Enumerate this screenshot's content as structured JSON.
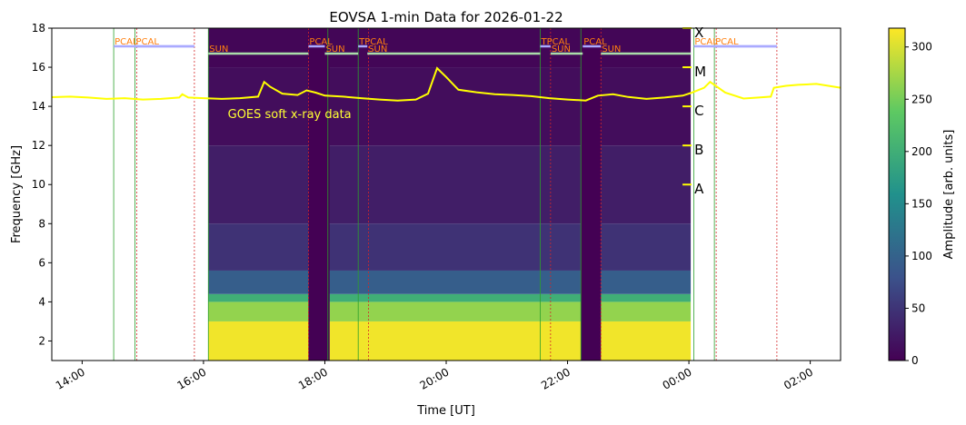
{
  "chart_data": {
    "type": "heatmap",
    "title": "EOVSA 1-min Data for 2026-01-22",
    "xlabel": "Time [UT]",
    "ylabel": "Frequency [GHz]",
    "colorbar_label": "Amplitude [arb. units]",
    "colormap": "viridis",
    "colormap_stops": [
      "#440154",
      "#3b528b",
      "#21918c",
      "#5ec962",
      "#fde725"
    ],
    "xlim_hours": [
      13.5,
      26.5
    ],
    "ylim": [
      1,
      18
    ],
    "x_ticks": [
      {
        "hour": 14,
        "label": "14:00"
      },
      {
        "hour": 16,
        "label": "16:00"
      },
      {
        "hour": 18,
        "label": "18:00"
      },
      {
        "hour": 20,
        "label": "20:00"
      },
      {
        "hour": 22,
        "label": "22:00"
      },
      {
        "hour": 24,
        "label": "00:00"
      },
      {
        "hour": 26,
        "label": "02:00"
      }
    ],
    "y_ticks": [
      2,
      4,
      6,
      8,
      10,
      12,
      14,
      16,
      18
    ],
    "color_ticks": [
      0,
      50,
      100,
      150,
      200,
      250,
      300
    ],
    "color_range": [
      0,
      318
    ],
    "data_range_hours": [
      16.08,
      24.03
    ],
    "gaps_hours": [
      [
        17.73,
        18.08
      ],
      [
        22.22,
        22.55
      ]
    ],
    "band_levels": [
      {
        "f_low": 1,
        "f_high": 3.0,
        "amp": 312
      },
      {
        "f_low": 3.0,
        "f_high": 4.0,
        "amp": 265
      },
      {
        "f_low": 4.0,
        "f_high": 4.4,
        "amp": 200
      },
      {
        "f_low": 4.4,
        "f_high": 5.6,
        "amp": 95
      },
      {
        "f_low": 5.6,
        "f_high": 8.0,
        "amp": 48
      },
      {
        "f_low": 8.0,
        "f_high": 12.0,
        "amp": 28
      },
      {
        "f_low": 12.0,
        "f_high": 16.0,
        "amp": 12
      },
      {
        "f_low": 16.0,
        "f_high": 18,
        "amp": 5
      }
    ],
    "observation_segments": [
      {
        "label": "PCAL",
        "start": 14.52,
        "end": 15.85,
        "color": "#aaaaff"
      },
      {
        "label": "PCAL",
        "start": 14.87,
        "end": 15.85,
        "color": "#aaaaff"
      },
      {
        "label": "SUN",
        "start": 16.08,
        "end": 17.73,
        "color": "#aaddaa"
      },
      {
        "label": "PCAL",
        "start": 17.73,
        "end": 18.0,
        "color": "#aaaaff"
      },
      {
        "label": "SUN",
        "start": 18.0,
        "end": 18.55,
        "color": "#aaddaa"
      },
      {
        "label": "TPCAL",
        "start": 18.55,
        "end": 18.7,
        "color": "#aaaaff"
      },
      {
        "label": "SUN",
        "start": 18.7,
        "end": 21.55,
        "color": "#aaddaa"
      },
      {
        "label": "TPCAL",
        "start": 21.55,
        "end": 21.72,
        "color": "#aaaaff"
      },
      {
        "label": "SUN",
        "start": 21.72,
        "end": 22.25,
        "color": "#aaddaa"
      },
      {
        "label": "PCAL",
        "start": 22.25,
        "end": 22.55,
        "color": "#aaaaff"
      },
      {
        "label": "SUN",
        "start": 22.55,
        "end": 24.03,
        "color": "#aaddaa"
      },
      {
        "label": "PCAL",
        "start": 24.08,
        "end": 25.45,
        "color": "#aaaaff"
      },
      {
        "label": "PCAL",
        "start": 24.42,
        "end": 25.45,
        "color": "#aaaaff"
      }
    ],
    "vertical_markers": [
      {
        "hour": 14.52,
        "color": "#2ca02c",
        "style": "solid"
      },
      {
        "hour": 14.87,
        "color": "#2ca02c",
        "style": "solid"
      },
      {
        "hour": 14.9,
        "color": "#d62728",
        "style": "dotted"
      },
      {
        "hour": 15.85,
        "color": "#d62728",
        "style": "dotted"
      },
      {
        "hour": 16.08,
        "color": "#2ca02c",
        "style": "solid"
      },
      {
        "hour": 17.73,
        "color": "#d62728",
        "style": "dotted"
      },
      {
        "hour": 18.05,
        "color": "#2ca02c",
        "style": "solid"
      },
      {
        "hour": 18.55,
        "color": "#2ca02c",
        "style": "solid"
      },
      {
        "hour": 18.72,
        "color": "#d62728",
        "style": "dotted"
      },
      {
        "hour": 21.55,
        "color": "#2ca02c",
        "style": "solid"
      },
      {
        "hour": 21.72,
        "color": "#d62728",
        "style": "dotted"
      },
      {
        "hour": 22.22,
        "color": "#2ca02c",
        "style": "solid"
      },
      {
        "hour": 22.55,
        "color": "#d62728",
        "style": "dotted"
      },
      {
        "hour": 24.08,
        "color": "#2ca02c",
        "style": "solid"
      },
      {
        "hour": 24.42,
        "color": "#2ca02c",
        "style": "solid"
      },
      {
        "hour": 24.45,
        "color": "#d62728",
        "style": "dotted"
      },
      {
        "hour": 25.45,
        "color": "#d62728",
        "style": "dotted"
      }
    ],
    "goes": {
      "label": "GOES soft x-ray data",
      "color": "#ffff00",
      "label_position_hours": 16.4,
      "label_position_ghz": 13.4,
      "class_labels": [
        {
          "label": "X",
          "ghz": 18
        },
        {
          "label": "M",
          "ghz": 16
        },
        {
          "label": "C",
          "ghz": 14
        },
        {
          "label": "B",
          "ghz": 12
        },
        {
          "label": "A",
          "ghz": 10
        }
      ],
      "points": [
        [
          13.5,
          14.47
        ],
        [
          13.8,
          14.5
        ],
        [
          14.1,
          14.45
        ],
        [
          14.4,
          14.38
        ],
        [
          14.7,
          14.42
        ],
        [
          15.0,
          14.35
        ],
        [
          15.3,
          14.38
        ],
        [
          15.6,
          14.45
        ],
        [
          15.65,
          14.62
        ],
        [
          15.75,
          14.45
        ],
        [
          16.0,
          14.42
        ],
        [
          16.3,
          14.38
        ],
        [
          16.6,
          14.42
        ],
        [
          16.9,
          14.5
        ],
        [
          17.0,
          15.25
        ],
        [
          17.1,
          15.0
        ],
        [
          17.3,
          14.65
        ],
        [
          17.55,
          14.58
        ],
        [
          17.7,
          14.82
        ],
        [
          17.85,
          14.7
        ],
        [
          18.0,
          14.55
        ],
        [
          18.3,
          14.5
        ],
        [
          18.6,
          14.42
        ],
        [
          18.9,
          14.35
        ],
        [
          19.2,
          14.3
        ],
        [
          19.5,
          14.35
        ],
        [
          19.7,
          14.65
        ],
        [
          19.85,
          15.95
        ],
        [
          20.0,
          15.5
        ],
        [
          20.2,
          14.85
        ],
        [
          20.5,
          14.72
        ],
        [
          20.8,
          14.62
        ],
        [
          21.1,
          14.58
        ],
        [
          21.4,
          14.52
        ],
        [
          21.7,
          14.42
        ],
        [
          22.0,
          14.35
        ],
        [
          22.3,
          14.3
        ],
        [
          22.5,
          14.55
        ],
        [
          22.75,
          14.62
        ],
        [
          23.0,
          14.48
        ],
        [
          23.3,
          14.38
        ],
        [
          23.6,
          14.45
        ],
        [
          23.9,
          14.55
        ],
        [
          24.05,
          14.7
        ],
        [
          24.25,
          14.95
        ],
        [
          24.35,
          15.25
        ],
        [
          24.6,
          14.7
        ],
        [
          24.9,
          14.4
        ],
        [
          25.15,
          14.45
        ],
        [
          25.35,
          14.5
        ],
        [
          25.4,
          14.95
        ],
        [
          25.6,
          15.05
        ],
        [
          25.8,
          15.1
        ],
        [
          26.1,
          15.15
        ],
        [
          26.3,
          15.05
        ],
        [
          26.5,
          14.95
        ]
      ]
    }
  }
}
